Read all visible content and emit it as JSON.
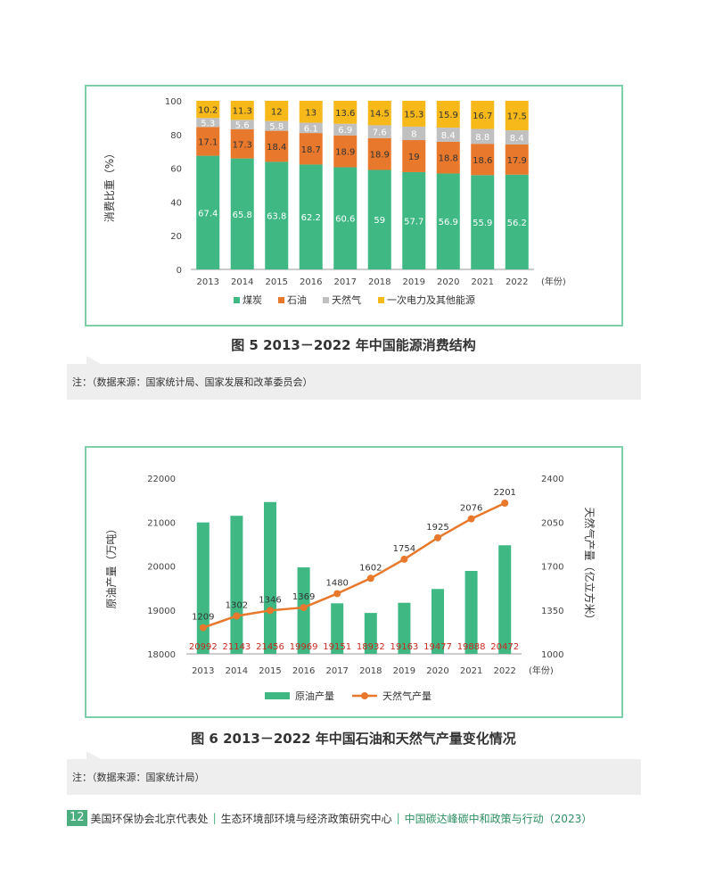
{
  "chart_data": [
    {
      "type": "bar",
      "stacked": true,
      "ylabel": "消费比重（%）",
      "x_unit": "(年份)",
      "ylim": [
        0,
        100
      ],
      "yticks": [
        0,
        20,
        40,
        60,
        80,
        100
      ],
      "categories": [
        "2013",
        "2014",
        "2015",
        "2016",
        "2017",
        "2018",
        "2019",
        "2020",
        "2021",
        "2022"
      ],
      "series": [
        {
          "name": "煤炭",
          "color": "#3fb884",
          "values": [
            67.4,
            65.8,
            63.8,
            62.2,
            60.6,
            59,
            57.7,
            56.9,
            55.9,
            56.2
          ]
        },
        {
          "name": "石油",
          "color": "#e8782c",
          "values": [
            17.1,
            17.3,
            18.4,
            18.7,
            18.9,
            18.9,
            19,
            18.8,
            18.6,
            17.9
          ]
        },
        {
          "name": "天然气",
          "color": "#c0c0c0",
          "values": [
            5.3,
            5.6,
            5.8,
            6.1,
            6.9,
            7.6,
            8,
            8.4,
            8.8,
            8.4
          ]
        },
        {
          "name": "一次电力及其他能源",
          "color": "#f7b81a",
          "values": [
            10.2,
            11.3,
            12,
            13,
            13.6,
            14.5,
            15.3,
            15.9,
            16.7,
            17.5
          ]
        }
      ],
      "legend_position": "bottom"
    },
    {
      "type": "bar+line",
      "ylabel_left": "原油产量（万吨）",
      "ylabel_right": "天然气产量（亿立方米）",
      "x_unit": "(年份)",
      "ylim_left": [
        18000,
        22000
      ],
      "yticks_left": [
        18000,
        19000,
        20000,
        21000,
        22000
      ],
      "ylim_right": [
        1000,
        2400
      ],
      "yticks_right": [
        1000,
        1350,
        1700,
        2050,
        2400
      ],
      "categories": [
        "2013",
        "2014",
        "2015",
        "2016",
        "2017",
        "2018",
        "2019",
        "2020",
        "2021",
        "2022"
      ],
      "series": [
        {
          "name": "原油产量",
          "kind": "bar",
          "axis": "left",
          "color": "#3fb884",
          "label_color": "#c8281e",
          "values": [
            20992,
            21143,
            21456,
            19969,
            19151,
            18932,
            19163,
            19477,
            19888,
            20472
          ]
        },
        {
          "name": "天然气产量",
          "kind": "line",
          "axis": "right",
          "color": "#e8782c",
          "values": [
            1209,
            1302,
            1346,
            1369,
            1480,
            1602,
            1754,
            1925,
            2076,
            2201
          ]
        }
      ],
      "legend_position": "bottom"
    }
  ],
  "captions": {
    "fig5": "图 5 2013－2022 年中国能源消费结构",
    "fig6": "图 6 2013－2022 年中国石油和天然气产量变化情况"
  },
  "notes": {
    "fig5": "注：（数据来源：国家统计局、国家发展和改革委员会）",
    "fig6": "注：（数据来源：国家统计局）"
  },
  "footer": {
    "page_number": "12",
    "org1": "美国环保协会北京代表处",
    "org2": "生态环境部环境与经济政策研究中心",
    "report": "中国碳达峰碳中和政策与行动（2023）"
  }
}
